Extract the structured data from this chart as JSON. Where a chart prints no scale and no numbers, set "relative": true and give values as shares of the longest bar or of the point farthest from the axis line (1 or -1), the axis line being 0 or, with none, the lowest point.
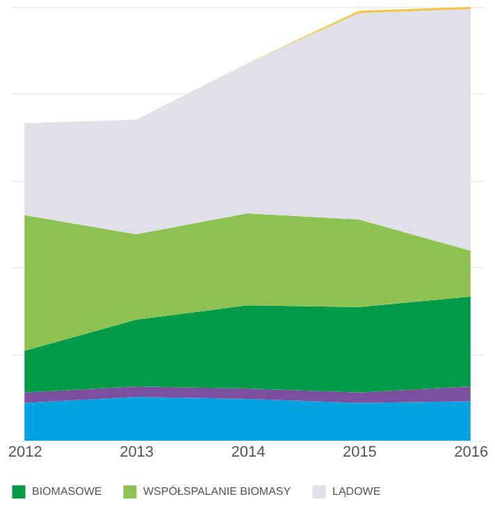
{
  "chart_data": {
    "type": "area",
    "stacked": true,
    "relative": true,
    "grid": "y",
    "legend": "bottom",
    "categories": [
      "2012",
      "2013",
      "2014",
      "2015",
      "2016"
    ],
    "series": [
      {
        "color": "#00a3e0",
        "values": [
          0.087,
          0.101,
          0.096,
          0.087,
          0.091
        ]
      },
      {
        "color": "#7b4f9d",
        "values": [
          0.024,
          0.024,
          0.024,
          0.024,
          0.034
        ]
      },
      {
        "name": "BIOMASOWE",
        "color": "#009a49",
        "values": [
          0.096,
          0.154,
          0.192,
          0.197,
          0.207
        ]
      },
      {
        "name": "WSPÓŁSPALANIE BIOMASY",
        "color": "#8dc152",
        "values": [
          0.313,
          0.197,
          0.212,
          0.202,
          0.106
        ]
      },
      {
        "name": "LĄDOWE",
        "color": "#dfe0e8",
        "values": [
          0.212,
          0.264,
          0.346,
          0.476,
          0.557
        ]
      },
      {
        "color": "#f5c342",
        "values": [
          0,
          0,
          0,
          0.005,
          0.005
        ]
      }
    ]
  }
}
